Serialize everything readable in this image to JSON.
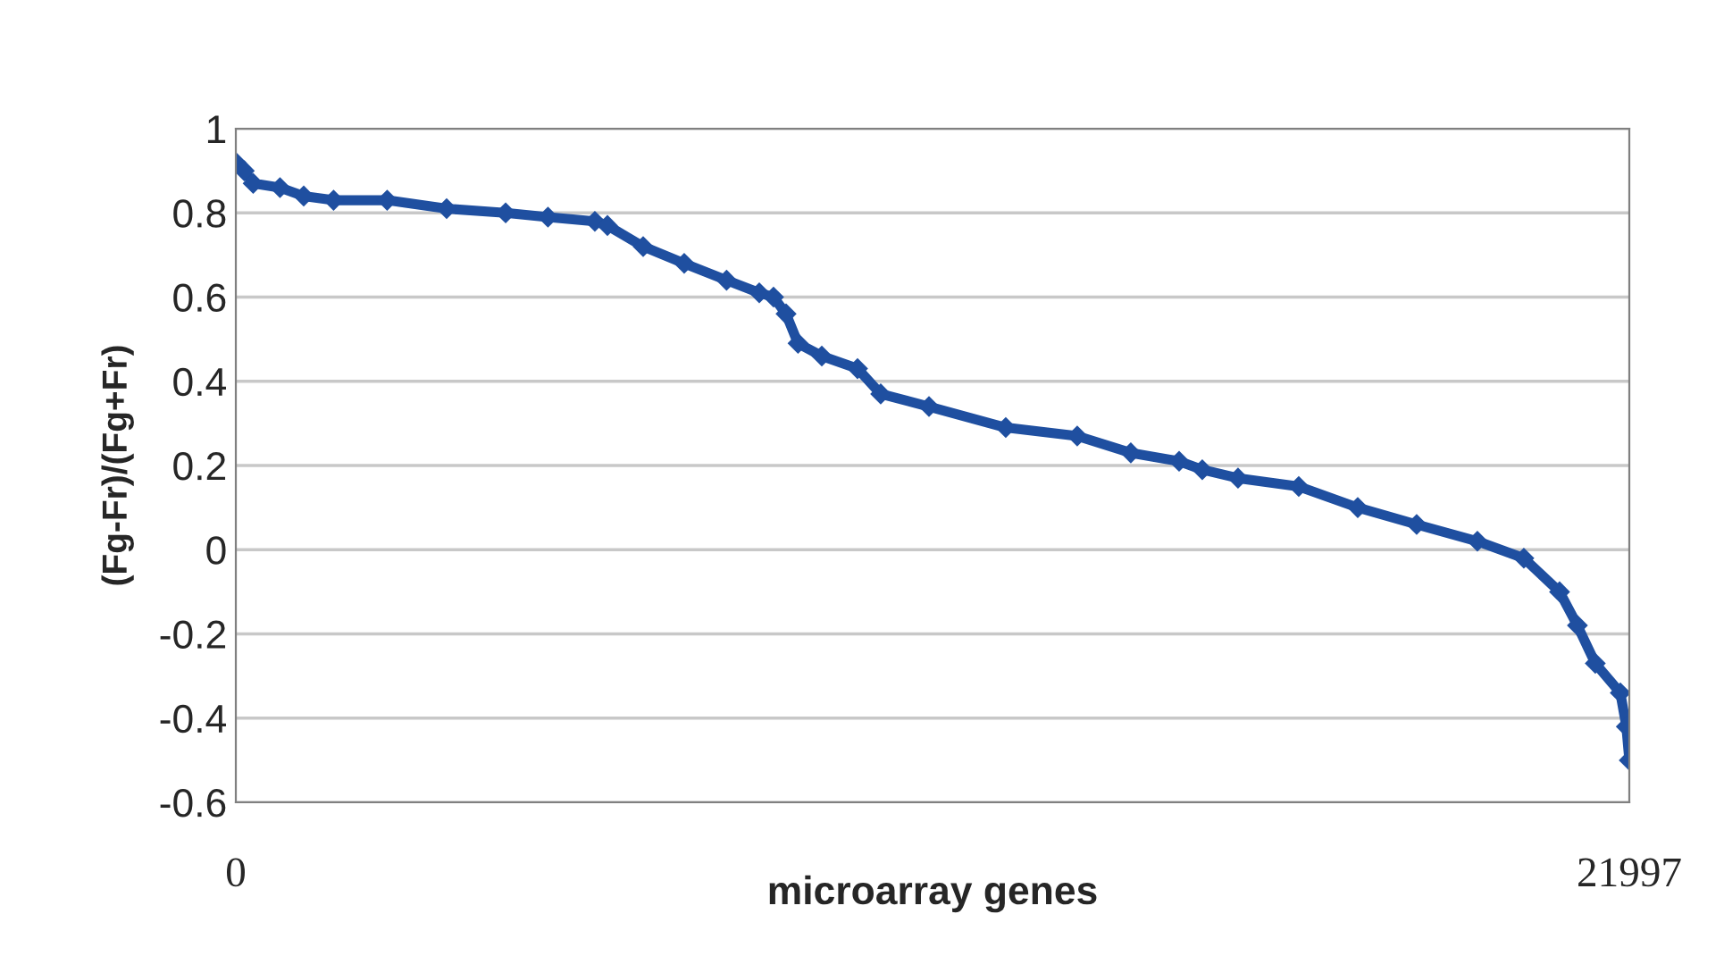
{
  "chart_data": {
    "type": "line",
    "xlabel": "microarray genes",
    "ylabel": "(Fg-Fr)/(Fg+Fr)",
    "x": [
      0,
      133,
      274,
      697,
      1072,
      1543,
      2389,
      3328,
      4259,
      4927,
      5668,
      5866,
      6430,
      7078,
      7747,
      8263,
      8488,
      8686,
      8875,
      9250,
      9814,
      10180,
      10942,
      12154,
      13282,
      14128,
      14890,
      15256,
      15820,
      16779,
      17710,
      18640,
      19599,
      20332,
      20896,
      21178,
      21460,
      21855,
      21950,
      21997
    ],
    "series": [
      {
        "color": "#1f4fa0",
        "values": [
          0.92,
          0.9,
          0.87,
          0.86,
          0.84,
          0.83,
          0.83,
          0.81,
          0.8,
          0.79,
          0.78,
          0.77,
          0.72,
          0.68,
          0.64,
          0.61,
          0.6,
          0.56,
          0.49,
          0.46,
          0.43,
          0.37,
          0.34,
          0.29,
          0.27,
          0.23,
          0.21,
          0.19,
          0.17,
          0.15,
          0.1,
          0.06,
          0.02,
          -0.02,
          -0.1,
          -0.18,
          -0.27,
          -0.34,
          -0.42,
          -0.5
        ]
      }
    ],
    "xlim": [
      0,
      21997
    ],
    "xticks": [
      0,
      21997
    ],
    "ylim": [
      -0.6,
      1
    ],
    "yticks": [
      -0.6,
      -0.4,
      -0.2,
      0,
      0.2,
      0.4,
      0.6,
      0.8,
      1
    ],
    "grid": "y",
    "marker": "diamond",
    "line_style": "solid",
    "legend": false
  }
}
